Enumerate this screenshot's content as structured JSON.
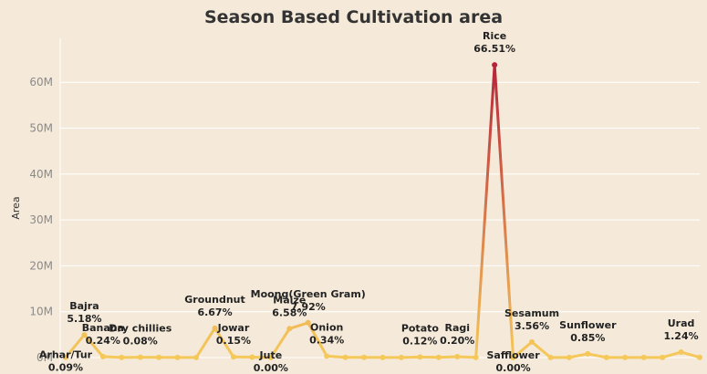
{
  "chart_data": {
    "type": "line",
    "title": "Season Based Cultivation area",
    "xlabel": "",
    "ylabel": "Area",
    "ylim": [
      0,
      69000000
    ],
    "y_ticks": [
      "0M",
      "10M",
      "20M",
      "30M",
      "40M",
      "50M",
      "60M"
    ],
    "y_tick_values": [
      0,
      10000000,
      20000000,
      30000000,
      40000000,
      50000000,
      60000000
    ],
    "grid": true,
    "color_scale": {
      "low": "#f5c85a",
      "high": "#b7243a"
    },
    "categories": [
      "Arhar/Tur",
      "Bajra",
      "Banana",
      "c4",
      "Dry chillies",
      "c6",
      "c7",
      "c8",
      "Groundnut",
      "Jowar",
      "c11",
      "Jute",
      "Maize",
      "Moong(Green Gram)",
      "Onion",
      "c15",
      "c16",
      "c17",
      "c18",
      "Potato",
      "c20",
      "Ragi",
      "c22",
      "Rice",
      "Safflower",
      "Sesamum",
      "c26",
      "c27",
      "Sunflower",
      "c29",
      "c30",
      "c31",
      "c32",
      "Urad",
      "c34"
    ],
    "values": [
      70000,
      4950000,
      230000,
      30000,
      80000,
      50000,
      30000,
      20000,
      6400000,
      150000,
      100000,
      1000,
      6300000,
      7600000,
      330000,
      50000,
      40000,
      30000,
      30000,
      120000,
      40000,
      190000,
      30000,
      63800000,
      1000,
      3400000,
      30000,
      30000,
      810000,
      30000,
      30000,
      30000,
      30000,
      1190000,
      60000
    ],
    "data_labels": [
      {
        "index": 0,
        "name": "Arhar/Tur",
        "pct": "0.09%",
        "pos": "below"
      },
      {
        "index": 1,
        "name": "Bajra",
        "pct": "5.18%",
        "pos": "above"
      },
      {
        "index": 2,
        "name": "Banana",
        "pct": "0.24%",
        "pos": "above"
      },
      {
        "index": 4,
        "name": "Dry chillies",
        "pct": "0.08%",
        "pos": "above"
      },
      {
        "index": 8,
        "name": "Groundnut",
        "pct": "6.67%",
        "pos": "above"
      },
      {
        "index": 9,
        "name": "Jowar",
        "pct": "0.15%",
        "pos": "above"
      },
      {
        "index": 11,
        "name": "Jute",
        "pct": "0.00%",
        "pos": "below"
      },
      {
        "index": 12,
        "name": "Maize",
        "pct": "6.58%",
        "pos": "above"
      },
      {
        "index": 13,
        "name": "Moong(Green Gram)",
        "pct": "7.92%",
        "pos": "above"
      },
      {
        "index": 14,
        "name": "Onion",
        "pct": "0.34%",
        "pos": "above"
      },
      {
        "index": 19,
        "name": "Potato",
        "pct": "0.12%",
        "pos": "above"
      },
      {
        "index": 21,
        "name": "Ragi",
        "pct": "0.20%",
        "pos": "above"
      },
      {
        "index": 23,
        "name": "Rice",
        "pct": "66.51%",
        "pos": "above"
      },
      {
        "index": 24,
        "name": "Safflower",
        "pct": "0.00%",
        "pos": "below"
      },
      {
        "index": 25,
        "name": "Sesamum",
        "pct": "3.56%",
        "pos": "above"
      },
      {
        "index": 28,
        "name": "Sunflower",
        "pct": "0.85%",
        "pos": "above"
      },
      {
        "index": 33,
        "name": "Urad",
        "pct": "1.24%",
        "pos": "above"
      }
    ]
  }
}
